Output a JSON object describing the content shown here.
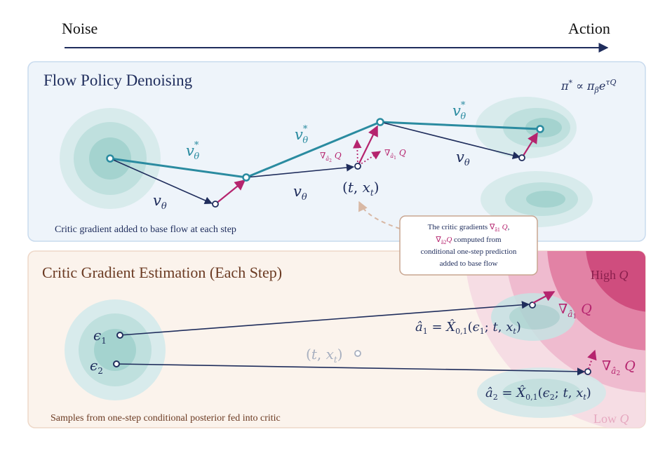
{
  "header": {
    "left_label": "Noise",
    "right_label": "Action"
  },
  "top_panel": {
    "title": "Flow Policy Denoising",
    "formula": "π* ∝ π_β e^{τQ}",
    "footer": "Critic gradient added to base flow at each step",
    "labels": {
      "v_star_1": "v*θ",
      "v_star_2": "v*θ",
      "v_star_3": "v*θ",
      "v_1": "vθ",
      "v_2": "vθ",
      "v_3": "vθ",
      "state": "(t, xt)",
      "grad_a2": "∇â2 Q",
      "grad_a1": "∇â1 Q"
    }
  },
  "callout": {
    "line1": "The critic gradients ∇â1 Q,",
    "line2": "∇â2 Q computed from",
    "line3": "conditional one-step prediction",
    "line4": "added to base flow"
  },
  "bottom_panel": {
    "title": "Critic Gradient Estimation (Each Step)",
    "footer": "Samples from one-step conditional posterior fed into critic",
    "high_label": "High Q",
    "low_label": "Low Q",
    "eps1": "ε1",
    "eps2": "ε2",
    "state": "(t, xt)",
    "a1_eq": "â1 = X̂0,1(ε1; t, xt)",
    "a2_eq": "â2 = X̂0,1(ε2; t, xt)",
    "grad_a1": "∇â1 Q",
    "grad_a2": "∇â2 Q"
  },
  "colors": {
    "navy": "#1f2d5c",
    "teal": "#2a8ba0",
    "magenta": "#b5246e",
    "top_panel_bg": "#eef4fa",
    "bottom_panel_bg": "#fbf3ec",
    "brown_title": "#6b3a22"
  }
}
